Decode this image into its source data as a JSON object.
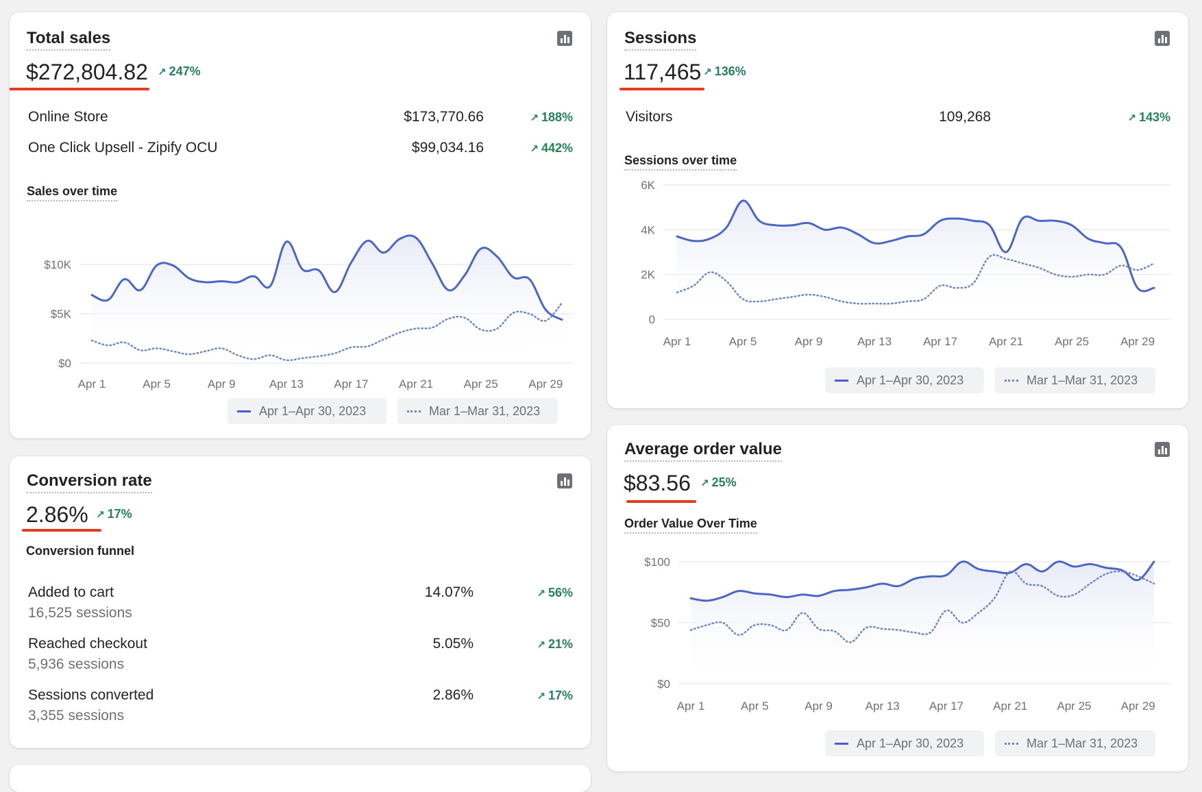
{
  "colors": {
    "primary_series": "#4a67c6",
    "comparison_series": "#6e86c8",
    "positive_delta": "#24835a",
    "highlight_underline": "#e53b22"
  },
  "legend": {
    "current": "Apr 1–Apr 30, 2023",
    "previous": "Mar 1–Mar 31, 2023"
  },
  "total_sales": {
    "title": "Total sales",
    "value": "$272,804.82",
    "delta": "247%",
    "icon": "bar-chart-icon",
    "rows": [
      {
        "label": "Online Store",
        "value": "$173,770.66",
        "delta": "188%"
      },
      {
        "label": "One Click Upsell - Zipify OCU",
        "value": "$99,034.16",
        "delta": "442%"
      }
    ],
    "chart_title": "Sales over time"
  },
  "sessions": {
    "title": "Sessions",
    "value": "117,465",
    "delta": "136%",
    "icon": "bar-chart-icon",
    "rows": [
      {
        "label": "Visitors",
        "value": "109,268",
        "delta": "143%"
      }
    ],
    "chart_title": "Sessions over time"
  },
  "conversion": {
    "title": "Conversion rate",
    "value": "2.86%",
    "delta": "17%",
    "icon": "bar-chart-icon",
    "funnel_title": "Conversion funnel",
    "steps": [
      {
        "label": "Added to cart",
        "sessions": "16,525 sessions",
        "value": "14.07%",
        "delta": "56%"
      },
      {
        "label": "Reached checkout",
        "sessions": "5,936 sessions",
        "value": "5.05%",
        "delta": "21%"
      },
      {
        "label": "Sessions converted",
        "sessions": "3,355 sessions",
        "value": "2.86%",
        "delta": "17%"
      }
    ]
  },
  "aov": {
    "title": "Average order value",
    "value": "$83.56",
    "delta": "25%",
    "icon": "bar-chart-icon",
    "chart_title": "Order Value Over Time"
  },
  "chart_data": [
    {
      "type": "line",
      "title": "Sales over time",
      "x": [
        "Apr 1",
        "Apr 2",
        "Apr 3",
        "Apr 4",
        "Apr 5",
        "Apr 6",
        "Apr 7",
        "Apr 8",
        "Apr 9",
        "Apr 10",
        "Apr 11",
        "Apr 12",
        "Apr 13",
        "Apr 14",
        "Apr 15",
        "Apr 16",
        "Apr 17",
        "Apr 18",
        "Apr 19",
        "Apr 20",
        "Apr 21",
        "Apr 22",
        "Apr 23",
        "Apr 24",
        "Apr 25",
        "Apr 26",
        "Apr 27",
        "Apr 28",
        "Apr 29",
        "Apr 30"
      ],
      "x_tick_labels": [
        "Apr 1",
        "Apr 5",
        "Apr 9",
        "Apr 13",
        "Apr 17",
        "Apr 21",
        "Apr 25",
        "Apr 29"
      ],
      "y_tick_labels": [
        "$0",
        "$5K",
        "$10K"
      ],
      "ylim": [
        0,
        15000
      ],
      "y_ticks": [
        0,
        5000,
        10000
      ],
      "series": [
        {
          "name": "Apr 1–Apr 30, 2023",
          "style": "solid",
          "values": [
            6900,
            6400,
            8500,
            7400,
            9900,
            9900,
            8600,
            8200,
            8300,
            8200,
            8800,
            7800,
            12300,
            9500,
            9400,
            7200,
            10200,
            12400,
            11200,
            12600,
            12700,
            10100,
            7400,
            8900,
            11600,
            10800,
            8700,
            8500,
            5400,
            4400
          ]
        },
        {
          "name": "Mar 1–Mar 31, 2023",
          "style": "dotted",
          "values": [
            2300,
            1800,
            2100,
            1300,
            1500,
            1200,
            900,
            1200,
            1500,
            800,
            400,
            800,
            300,
            500,
            700,
            1000,
            1600,
            1700,
            2400,
            3100,
            3500,
            3600,
            4500,
            4600,
            3400,
            3500,
            5100,
            5000,
            4300,
            6100
          ]
        }
      ]
    },
    {
      "type": "line",
      "title": "Sessions over time",
      "x": [
        "Apr 1",
        "Apr 2",
        "Apr 3",
        "Apr 4",
        "Apr 5",
        "Apr 6",
        "Apr 7",
        "Apr 8",
        "Apr 9",
        "Apr 10",
        "Apr 11",
        "Apr 12",
        "Apr 13",
        "Apr 14",
        "Apr 15",
        "Apr 16",
        "Apr 17",
        "Apr 18",
        "Apr 19",
        "Apr 20",
        "Apr 21",
        "Apr 22",
        "Apr 23",
        "Apr 24",
        "Apr 25",
        "Apr 26",
        "Apr 27",
        "Apr 28",
        "Apr 29",
        "Apr 30"
      ],
      "x_tick_labels": [
        "Apr 1",
        "Apr 5",
        "Apr 9",
        "Apr 13",
        "Apr 17",
        "Apr 21",
        "Apr 25",
        "Apr 29"
      ],
      "y_tick_labels": [
        "0",
        "2K",
        "4K",
        "6K"
      ],
      "ylim": [
        0,
        6000
      ],
      "y_ticks": [
        0,
        2000,
        4000,
        6000
      ],
      "series": [
        {
          "name": "Apr 1–Apr 30, 2023",
          "style": "solid",
          "values": [
            3700,
            3500,
            3600,
            4100,
            5300,
            4400,
            4200,
            4200,
            4300,
            4000,
            4100,
            3800,
            3400,
            3500,
            3700,
            3800,
            4400,
            4500,
            4400,
            4200,
            3000,
            4500,
            4400,
            4400,
            4200,
            3600,
            3400,
            3200,
            1400,
            1400
          ]
        },
        {
          "name": "Mar 1–Mar 31, 2023",
          "style": "dotted",
          "values": [
            1200,
            1500,
            2100,
            1700,
            900,
            800,
            900,
            1000,
            1100,
            1000,
            800,
            700,
            700,
            700,
            800,
            900,
            1500,
            1400,
            1600,
            2800,
            2700,
            2500,
            2300,
            2000,
            1900,
            2000,
            2000,
            2400,
            2200,
            2500
          ]
        }
      ]
    },
    {
      "type": "line",
      "title": "Order Value Over Time",
      "x": [
        "Apr 1",
        "Apr 2",
        "Apr 3",
        "Apr 4",
        "Apr 5",
        "Apr 6",
        "Apr 7",
        "Apr 8",
        "Apr 9",
        "Apr 10",
        "Apr 11",
        "Apr 12",
        "Apr 13",
        "Apr 14",
        "Apr 15",
        "Apr 16",
        "Apr 17",
        "Apr 18",
        "Apr 19",
        "Apr 20",
        "Apr 21",
        "Apr 22",
        "Apr 23",
        "Apr 24",
        "Apr 25",
        "Apr 26",
        "Apr 27",
        "Apr 28",
        "Apr 29",
        "Apr 30"
      ],
      "x_tick_labels": [
        "Apr 1",
        "Apr 5",
        "Apr 9",
        "Apr 13",
        "Apr 17",
        "Apr 21",
        "Apr 25",
        "Apr 29"
      ],
      "y_tick_labels": [
        "$0",
        "$50",
        "$100"
      ],
      "ylim": [
        0,
        110
      ],
      "y_ticks": [
        0,
        50,
        100
      ],
      "series": [
        {
          "name": "Apr 1–Apr 30, 2023",
          "style": "solid",
          "values": [
            70,
            68,
            71,
            76,
            74,
            73,
            71,
            73,
            72,
            76,
            77,
            79,
            82,
            80,
            86,
            88,
            89,
            100,
            94,
            92,
            91,
            98,
            92,
            100,
            96,
            98,
            95,
            93,
            85,
            100
          ]
        },
        {
          "name": "Mar 1–Mar 31, 2023",
          "style": "dotted",
          "values": [
            44,
            48,
            50,
            40,
            48,
            48,
            44,
            58,
            45,
            43,
            34,
            46,
            45,
            44,
            42,
            42,
            60,
            50,
            58,
            70,
            92,
            82,
            80,
            72,
            73,
            82,
            90,
            92,
            88,
            82
          ]
        }
      ]
    }
  ]
}
